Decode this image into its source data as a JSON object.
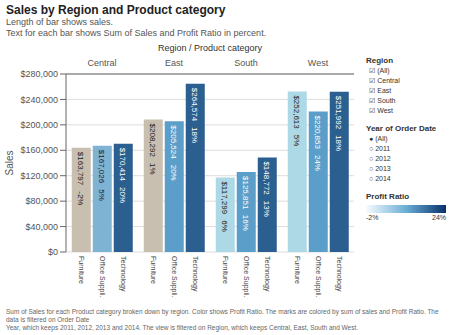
{
  "chart_data": {
    "type": "bar",
    "title": "Sales by Region and Product category",
    "subtitle": [
      "Length of bar shows sales.",
      "Text for each bar shows Sum of Sales and Profit Ratio in percent."
    ],
    "xlabel": "Region / Product category",
    "ylabel": "Sales",
    "categories": [
      "Central",
      "East",
      "South",
      "West"
    ],
    "series": [
      {
        "name": "Furniture",
        "colors": [
          "#c8bfb0",
          "#c8bfb0",
          "#add8e6",
          "#add8e6"
        ],
        "values": [
          163797,
          208292,
          117299,
          252613
        ],
        "value_labels": [
          "$163,797",
          "$208,292",
          "$117,299",
          "$252,613"
        ],
        "profit_ratio_labels": [
          "-2%",
          "1%",
          "6%",
          "5%"
        ]
      },
      {
        "name": "Office Suppli.",
        "colors": [
          "#7fb3d3",
          "#5a9ec9",
          "#5a9ec9",
          "#5a9ec9"
        ],
        "values": [
          167026,
          205524,
          125851,
          220853
        ],
        "value_labels": [
          "$167,026",
          "$205,524",
          "$125,851",
          "$220,853"
        ],
        "profit_ratio_labels": [
          "5%",
          "20%",
          "16%",
          "24%"
        ]
      },
      {
        "name": "Technology",
        "colors": [
          "#2a5f8f",
          "#2a5f8f",
          "#2a5f8f",
          "#2a5f8f"
        ],
        "values": [
          170414,
          264574,
          148772,
          251992
        ],
        "value_labels": [
          "$170,414",
          "$264,574",
          "$148,772",
          "$251,992"
        ],
        "profit_ratio_labels": [
          "20%",
          "18%",
          "13%",
          "18%"
        ]
      }
    ],
    "ylim": [
      0,
      280000
    ],
    "yticks": [
      {
        "value": 0,
        "label": "$0"
      },
      {
        "value": 40000,
        "label": "$40,000"
      },
      {
        "value": 80000,
        "label": "$80,000"
      },
      {
        "value": 120000,
        "label": "$120,000"
      },
      {
        "value": 160000,
        "label": "$160,000"
      },
      {
        "value": 200000,
        "label": "$200,000"
      },
      {
        "value": 240000,
        "label": "$240,000"
      },
      {
        "value": 280000,
        "label": "$280,000"
      }
    ],
    "grid": true,
    "data_labels": true,
    "side_panel": [
      {
        "title": "Region",
        "items": [
          "☑ (All)",
          "☑ Central",
          "☑ East",
          "☑ South",
          "☑ West"
        ]
      },
      {
        "title": "Year of Order Date",
        "items": [
          "● (All)",
          "○ 2011",
          "○ 2012",
          "○ 2013",
          "○ 2014"
        ]
      },
      {
        "title": "Profit Ratio",
        "colorbar": {
          "range": [
            -2,
            24
          ],
          "ticks": [
            {
              "value": -2,
              "label": "-2%"
            },
            {
              "value": 24,
              "label": "24%"
            }
          ]
        }
      }
    ],
    "footnote": [
      "Sum of Sales for each Product category broken down by region. Color shows Profit Ratio. The marks are colored by sum of sales and Profit Ratio. The data is filtered on Order Date",
      "Year, which keeps 2011, 2012, 2013 and 2014. The view is filtered on Region, which keeps Central, East, South and West."
    ]
  }
}
